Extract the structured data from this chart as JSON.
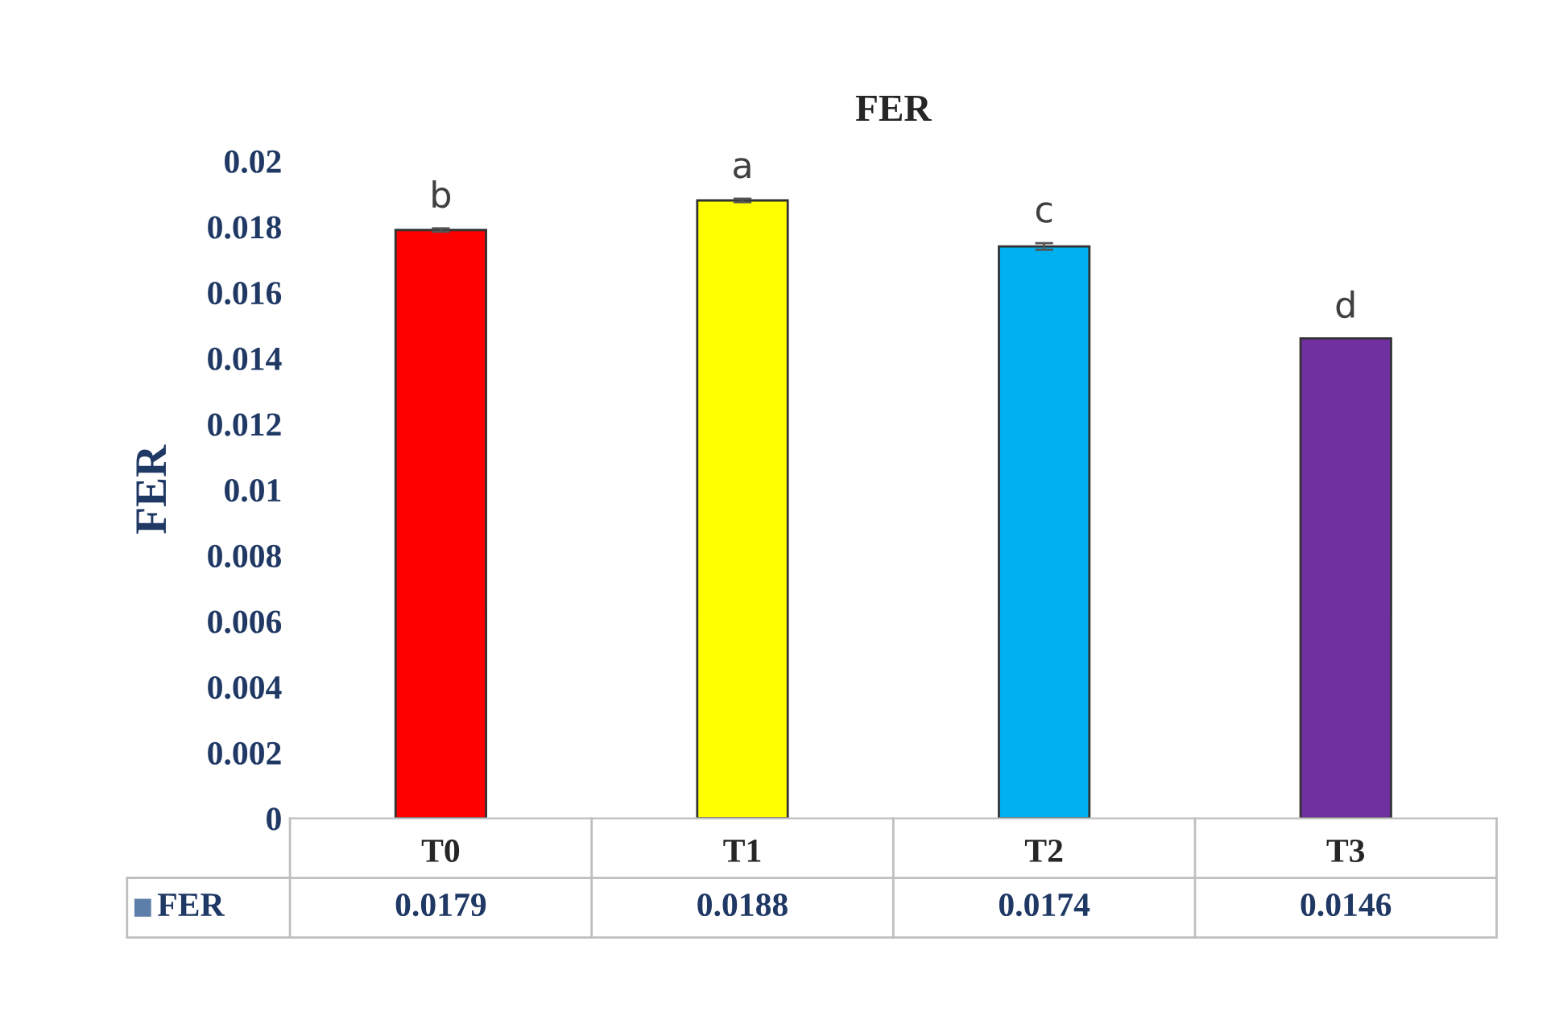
{
  "chart_data": {
    "type": "bar",
    "title": "FER",
    "ylabel": "FER",
    "categories": [
      "T0",
      "T1",
      "T2",
      "T3"
    ],
    "series": [
      {
        "name": "FER",
        "color": "#5b7fa8",
        "colors": [
          "#ff0000",
          "#ffff00",
          "#00b0f0",
          "#7030a0"
        ],
        "values": [
          0.0179,
          0.0188,
          0.0174,
          0.0146
        ],
        "errors": [
          5e-05,
          5e-05,
          0.0001,
          null
        ]
      }
    ],
    "ylim": [
      0,
      0.02
    ],
    "yticks": [
      0,
      0.002,
      0.004,
      0.006,
      0.008,
      0.01,
      0.012,
      0.014,
      0.016,
      0.018,
      0.02
    ],
    "annotations": [
      {
        "text": "b",
        "x": "T0",
        "y": 0.0179
      },
      {
        "text": "a",
        "x": "T1",
        "y": 0.0188
      },
      {
        "text": "c",
        "x": "T2",
        "y": 0.0174
      },
      {
        "text": "d",
        "x": "T3",
        "y": 0.0146
      }
    ],
    "data_labels": true,
    "grid": false
  }
}
